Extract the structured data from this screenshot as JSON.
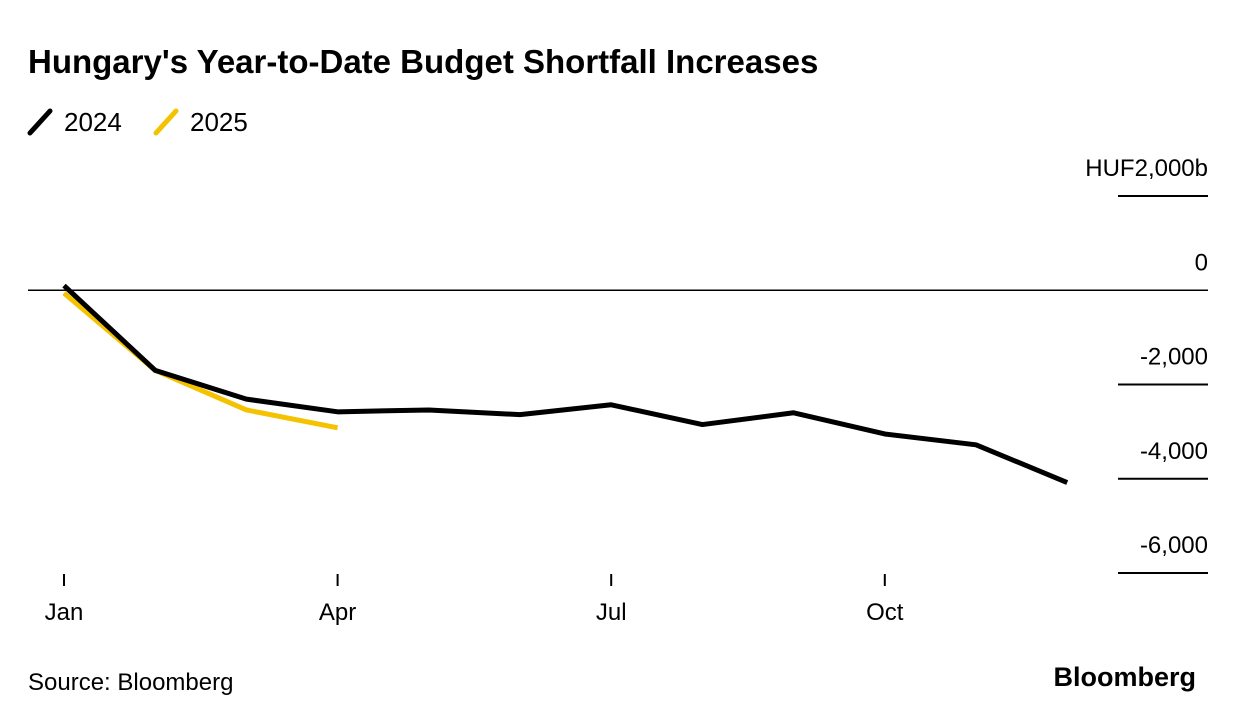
{
  "chart_data": {
    "type": "line",
    "title": "Hungary's Year-to-Date Budget Shortfall Increases",
    "categories": [
      "Jan",
      null,
      null,
      "Apr",
      null,
      null,
      "Jul",
      null,
      null,
      "Oct",
      null,
      null
    ],
    "series": [
      {
        "name": "2024",
        "color": "#000000",
        "values": [
          100,
          -1700,
          -2310,
          -2580,
          -2540,
          -2640,
          -2430,
          -2850,
          -2600,
          -3050,
          -3280,
          -4080
        ]
      },
      {
        "name": "2025",
        "color": "#f5c200",
        "values": [
          -60,
          -1700,
          -2540,
          -2920,
          null,
          null,
          null,
          null,
          null,
          null,
          null,
          null
        ]
      }
    ],
    "ylim": [
      -6000,
      2000
    ],
    "yticks": [
      {
        "value": 2000,
        "label": "HUF2,000b"
      },
      0,
      {
        "value": -2000,
        "label": "-2,000"
      },
      {
        "value": -4000,
        "label": "-4,000"
      },
      {
        "value": -6000,
        "label": "-6,000"
      }
    ],
    "source": "Source: Bloomberg",
    "logo": "Bloomberg"
  }
}
